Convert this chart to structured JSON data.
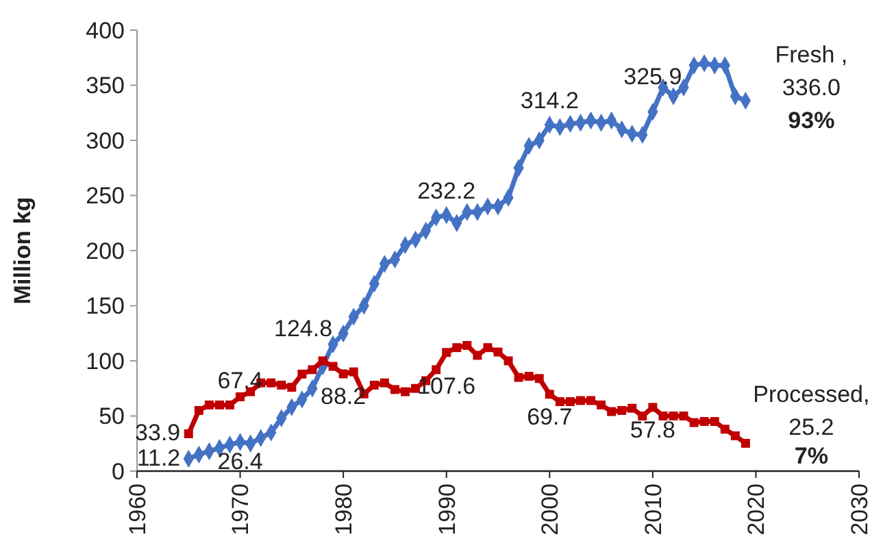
{
  "chart_data": {
    "type": "line",
    "ylabel": "Million kg",
    "x": [
      1965,
      1966,
      1967,
      1968,
      1969,
      1970,
      1971,
      1972,
      1973,
      1974,
      1975,
      1976,
      1977,
      1978,
      1979,
      1980,
      1981,
      1982,
      1983,
      1984,
      1985,
      1986,
      1987,
      1988,
      1989,
      1990,
      1991,
      1992,
      1993,
      1994,
      1995,
      1996,
      1997,
      1998,
      1999,
      2000,
      2001,
      2002,
      2003,
      2004,
      2005,
      2006,
      2007,
      2008,
      2009,
      2010,
      2011,
      2012,
      2013,
      2014,
      2015,
      2016,
      2017,
      2018,
      2019
    ],
    "xlim": [
      1960,
      2030
    ],
    "xticks": [
      1960,
      1970,
      1980,
      1990,
      2000,
      2010,
      2020,
      2030
    ],
    "ylim": [
      0,
      400
    ],
    "yticks": [
      0,
      50,
      100,
      150,
      200,
      250,
      300,
      350,
      400
    ],
    "grid": false,
    "series": [
      {
        "name": "Fresh ,",
        "color": "#4472c4",
        "marker": "diamond",
        "values": [
          11.2,
          15,
          18,
          21,
          24,
          26.4,
          25,
          30,
          35,
          48,
          58,
          65,
          75,
          95,
          115,
          124.8,
          140,
          150,
          170,
          188,
          192,
          205,
          210,
          218,
          230,
          232.2,
          225,
          235,
          235,
          240,
          240,
          248,
          275,
          295,
          300,
          314.2,
          312,
          315,
          316,
          318,
          316,
          318,
          310,
          306,
          305,
          325.9,
          348,
          340,
          348,
          368,
          370,
          368,
          368,
          340,
          336.0
        ],
        "value_labels": [
          "11.2",
          null,
          null,
          null,
          null,
          "26.4",
          null,
          null,
          null,
          null,
          null,
          null,
          null,
          null,
          null,
          "124.8",
          null,
          null,
          null,
          null,
          null,
          null,
          null,
          null,
          null,
          "232.2",
          null,
          null,
          null,
          null,
          null,
          null,
          null,
          null,
          null,
          "314.2",
          null,
          null,
          null,
          null,
          null,
          null,
          null,
          null,
          null,
          "325.9",
          null,
          null,
          null,
          null,
          null,
          null,
          null,
          null,
          "336.0"
        ]
      },
      {
        "name": "Processed,",
        "color": "#c00000",
        "marker": "square",
        "values": [
          33.9,
          55,
          60,
          60,
          60,
          67.4,
          72,
          80,
          80,
          78,
          76,
          88,
          92,
          100,
          95,
          88.2,
          90,
          70,
          78,
          80,
          74,
          72,
          75,
          82,
          92,
          107.6,
          112,
          114,
          105,
          112,
          108,
          100,
          85,
          86,
          84,
          69.7,
          63,
          63,
          64,
          64,
          60,
          54,
          55,
          57,
          50,
          57.8,
          50,
          50,
          50,
          44,
          45,
          45,
          38,
          32,
          25.2
        ],
        "value_labels": [
          "33.9",
          null,
          null,
          null,
          null,
          "67.4",
          null,
          null,
          null,
          null,
          null,
          null,
          null,
          null,
          null,
          "88.2",
          null,
          null,
          null,
          null,
          null,
          null,
          null,
          null,
          null,
          "107.6",
          null,
          null,
          null,
          null,
          null,
          null,
          null,
          null,
          null,
          "69.7",
          null,
          null,
          null,
          null,
          null,
          null,
          null,
          null,
          null,
          "57.8",
          null,
          null,
          null,
          null,
          null,
          null,
          null,
          null,
          "25.2"
        ]
      }
    ],
    "annotations": [
      {
        "text": "93%",
        "x": 2019,
        "y": 336.0
      },
      {
        "text": "7%",
        "x": 2019,
        "y": 25.2
      }
    ]
  }
}
